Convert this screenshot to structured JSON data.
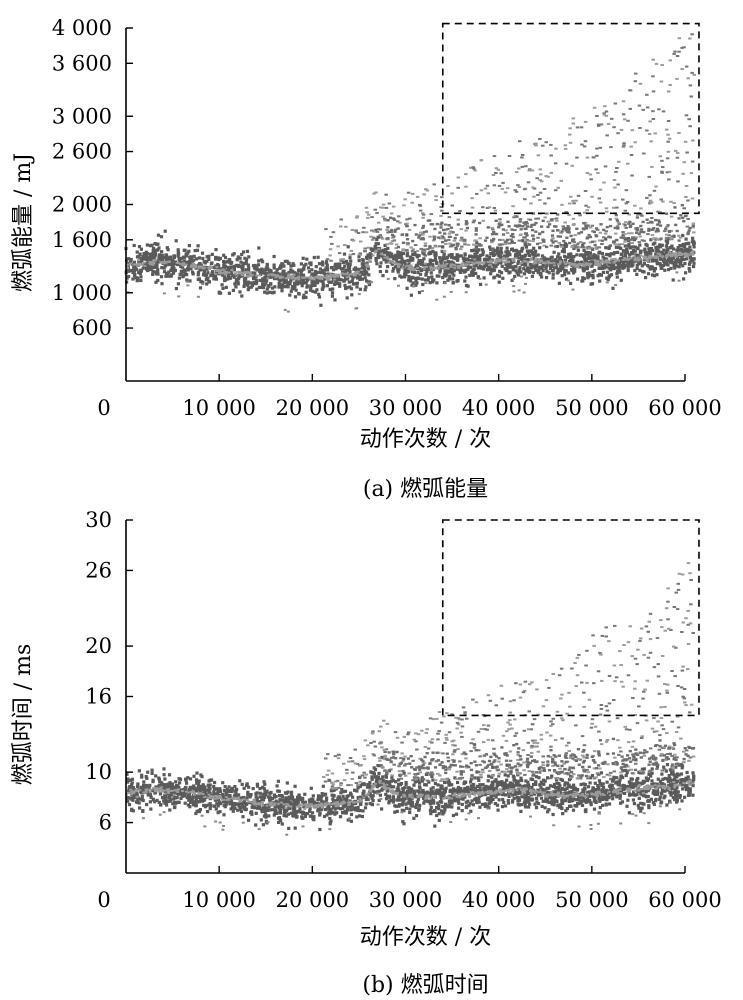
{
  "chart_data": [
    {
      "type": "scatter",
      "caption": "(a)  燃弧能量",
      "xlabel": "动作次数 / 次",
      "ylabel": "燃弧能量 / mJ",
      "xlim": [
        0,
        60000
      ],
      "ylim": [
        0,
        4000
      ],
      "x_ticks": [
        0,
        10000,
        20000,
        30000,
        40000,
        50000,
        60000
      ],
      "x_tick_labels": [
        "0",
        "10 000",
        "20 000",
        "30 000",
        "40 000",
        "50 000",
        "60 000"
      ],
      "y_ticks": [
        600,
        1000,
        1600,
        2000,
        2600,
        3000,
        3600,
        4000
      ],
      "y_tick_labels": [
        "600",
        "1 000",
        "1 600",
        "2 000",
        "2 600",
        "3 000",
        "3 600",
        "4 000"
      ],
      "trend": {
        "x": [
          0,
          3000,
          6000,
          10000,
          14000,
          18000,
          22000,
          25000,
          26000,
          27000,
          28000,
          30000,
          34000,
          38000,
          42000,
          46000,
          50000,
          54000,
          58000,
          61000
        ],
        "y": [
          1300,
          1350,
          1330,
          1250,
          1200,
          1170,
          1180,
          1220,
          1320,
          1500,
          1370,
          1280,
          1290,
          1340,
          1380,
          1330,
          1320,
          1380,
          1420,
          1450
        ]
      },
      "band_halfwidth": 100,
      "highlight_box": {
        "x": [
          34000,
          61500
        ],
        "y": [
          1900,
          4050
        ]
      },
      "color": "#555555"
    },
    {
      "type": "scatter",
      "caption": "(b)  燃弧时间",
      "xlabel": "动作次数 / 次",
      "ylabel": "燃弧时间 / ms",
      "xlim": [
        0,
        60000
      ],
      "ylim": [
        2,
        30
      ],
      "x_ticks": [
        0,
        10000,
        20000,
        30000,
        40000,
        50000,
        60000
      ],
      "x_tick_labels": [
        "0",
        "10 000",
        "20 000",
        "30 000",
        "40 000",
        "50 000",
        "60 000"
      ],
      "y_ticks": [
        6,
        10,
        16,
        20,
        26,
        30
      ],
      "y_tick_labels": [
        "6",
        "10",
        "16",
        "20",
        "26",
        "30"
      ],
      "trend": {
        "x": [
          0,
          3000,
          6000,
          10000,
          14000,
          18000,
          22000,
          25000,
          26000,
          27000,
          28000,
          30000,
          34000,
          38000,
          42000,
          46000,
          50000,
          54000,
          58000,
          61000
        ],
        "y": [
          8.3,
          8.6,
          8.4,
          8.0,
          7.6,
          7.3,
          7.4,
          7.7,
          8.3,
          9.5,
          8.6,
          8.1,
          8.0,
          8.3,
          8.6,
          8.2,
          8.2,
          8.6,
          8.9,
          9.2
        ]
      },
      "band_halfwidth": 0.7,
      "highlight_box": {
        "x": [
          34000,
          61500
        ],
        "y": [
          14.5,
          30
        ]
      },
      "color": "#555555"
    }
  ]
}
